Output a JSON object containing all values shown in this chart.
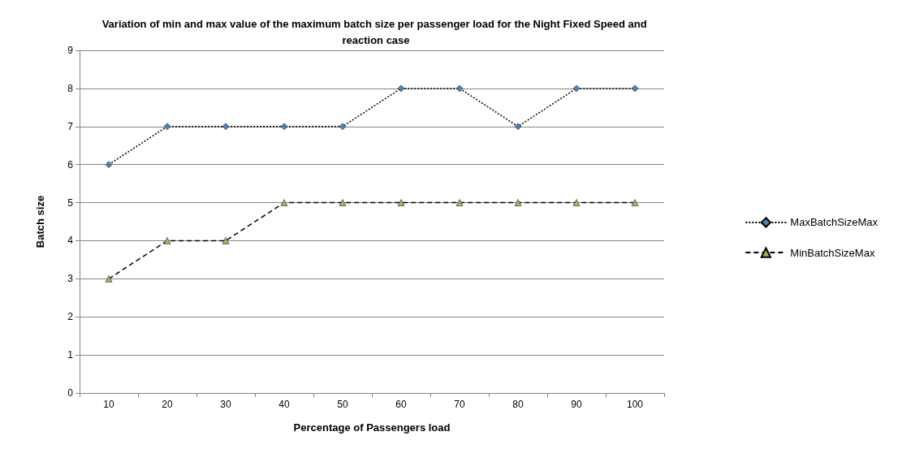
{
  "chart_data": {
    "type": "line",
    "title": "Variation of min and max value of the maximum batch size per passenger load for the Night Fixed Speed and reaction case",
    "xlabel": "Percentage of Passengers load",
    "ylabel": "Batch size",
    "categories": [
      "10",
      "20",
      "30",
      "40",
      "50",
      "60",
      "70",
      "80",
      "90",
      "100"
    ],
    "series": [
      {
        "name": "MaxBatchSizeMax",
        "color": "#4f81bd",
        "marker": "diamond",
        "line_style": "dotted",
        "values": [
          6,
          7,
          7,
          7,
          7,
          8,
          8,
          7,
          8,
          8
        ]
      },
      {
        "name": "MinBatchSizeMax",
        "color": "#9bbb59",
        "marker": "triangle",
        "line_style": "dashed",
        "values": [
          3,
          4,
          4,
          5,
          5,
          5,
          5,
          5,
          5,
          5
        ]
      }
    ],
    "ylim": [
      0,
      9
    ],
    "yticks": [
      0,
      1,
      2,
      3,
      4,
      5,
      6,
      7,
      8,
      9
    ],
    "grid": "y",
    "legend": "right"
  }
}
